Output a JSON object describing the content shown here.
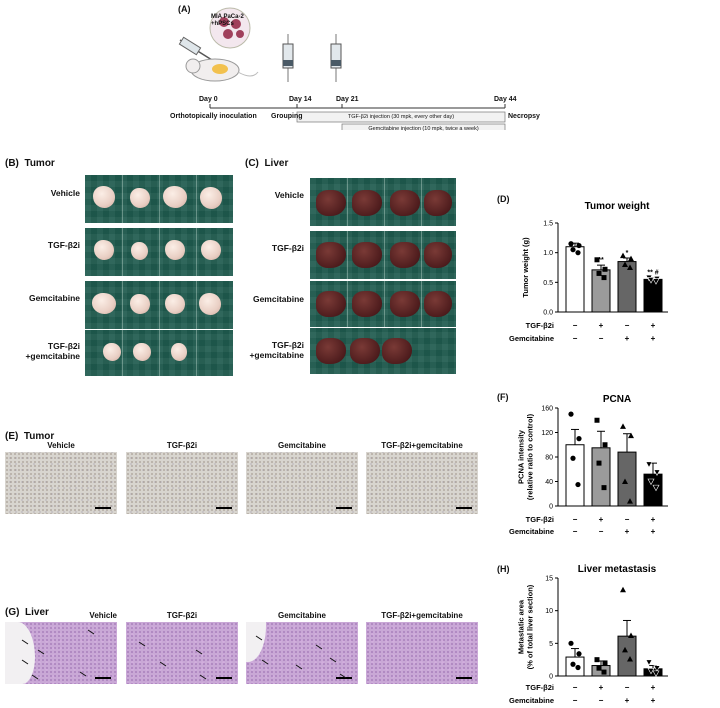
{
  "panel_a": {
    "label": "(A)",
    "cells": "MIA PaCa-2\n+hPSCs",
    "day0": "Day 0",
    "day14": "Day 14",
    "day21": "Day 21",
    "day44": "Day 44",
    "ortho": "Orthotopically inoculation",
    "grouping": "Grouping",
    "necropsy": "Necropsy",
    "tgf_inj": "TGF-β2i injection (30 mpk, every other day)",
    "gem_inj": "Gemcitabine injection (10 mpk, twice a week)"
  },
  "panel_b": {
    "label": "(B)",
    "title": "Tumor"
  },
  "panel_c": {
    "label": "(C)",
    "title": "Liver"
  },
  "rows": [
    "Vehicle",
    "TGF-β2i",
    "Gemcitabine",
    "TGF-β2i\n+gemcitabine"
  ],
  "panel_e": {
    "label": "(E)",
    "title": "Tumor",
    "images": [
      "Vehicle",
      "TGF-β2i",
      "Gemcitabine",
      "TGF-β2i+gemcitabine"
    ]
  },
  "panel_g": {
    "label": "(G)",
    "title": "Liver",
    "images": [
      "Vehicle",
      "TGF-β2i",
      "Gemcitabine",
      "TGF-β2i+gemcitabine"
    ]
  },
  "factors": {
    "tgf": "TGF-β2i",
    "gem": "Gemcitabine",
    "tgf_signs": [
      "−",
      "+",
      "−",
      "+"
    ],
    "gem_signs": [
      "−",
      "−",
      "+",
      "+"
    ]
  },
  "chart_data": [
    {
      "panel": "(D)",
      "type": "bar",
      "title": "Tumor weight",
      "ylabel": "Tumor weight (g)",
      "ylim": [
        0,
        1.5
      ],
      "yticks": [
        "0.0",
        "0.5",
        "1.0",
        "1.5"
      ],
      "values": [
        1.1,
        0.71,
        0.85,
        0.55
      ],
      "errors": [
        0.06,
        0.08,
        0.06,
        0.03
      ],
      "points": [
        [
          1.15,
          1.12,
          1.05,
          1.0
        ],
        [
          0.88,
          0.72,
          0.65,
          0.58
        ],
        [
          0.95,
          0.9,
          0.8,
          0.75
        ],
        [
          0.58,
          0.56,
          0.54,
          0.52
        ]
      ],
      "annotations": [
        "",
        "**",
        "*",
        "** #"
      ],
      "bar_colors": [
        "#ffffff",
        "#9b9b9b",
        "#666666",
        "#000000"
      ],
      "markers": [
        "circle",
        "square",
        "triangle",
        "triangle-down"
      ]
    },
    {
      "panel": "(F)",
      "type": "bar",
      "title": "PCNA",
      "ylabel": "PCNA intensity\n(relative ratio to control)",
      "ylim": [
        0,
        160
      ],
      "yticks": [
        "0",
        "40",
        "80",
        "120",
        "160"
      ],
      "values": [
        100,
        95,
        88,
        52
      ],
      "errors": [
        25,
        27,
        30,
        18
      ],
      "points": [
        [
          150,
          110,
          78,
          35
        ],
        [
          140,
          100,
          70,
          30
        ],
        [
          130,
          115,
          40,
          8
        ],
        [
          68,
          55,
          40,
          30
        ]
      ],
      "annotations": [
        "",
        "",
        "",
        ""
      ],
      "bar_colors": [
        "#ffffff",
        "#9b9b9b",
        "#666666",
        "#000000"
      ],
      "markers": [
        "circle",
        "square",
        "triangle",
        "triangle-down"
      ]
    },
    {
      "panel": "(H)",
      "type": "bar",
      "title": "Liver metastasis",
      "ylabel": "Metastatic area\n(% of total liver section)",
      "ylim": [
        0,
        15
      ],
      "yticks": [
        "0",
        "5",
        "10",
        "15"
      ],
      "values": [
        2.9,
        1.6,
        6.1,
        1.1
      ],
      "errors": [
        1.3,
        0.7,
        2.4,
        0.5
      ],
      "points": [
        [
          5,
          3.4,
          1.8,
          1.3
        ],
        [
          2.5,
          2.0,
          1.2,
          0.6
        ],
        [
          13.2,
          6.2,
          4.0,
          2.6
        ],
        [
          2.1,
          1.2,
          0.8,
          0.4
        ]
      ],
      "annotations": [
        "",
        "",
        "",
        ""
      ],
      "bar_colors": [
        "#ffffff",
        "#9b9b9b",
        "#666666",
        "#000000"
      ],
      "markers": [
        "circle",
        "square",
        "triangle",
        "triangle-down"
      ]
    }
  ]
}
